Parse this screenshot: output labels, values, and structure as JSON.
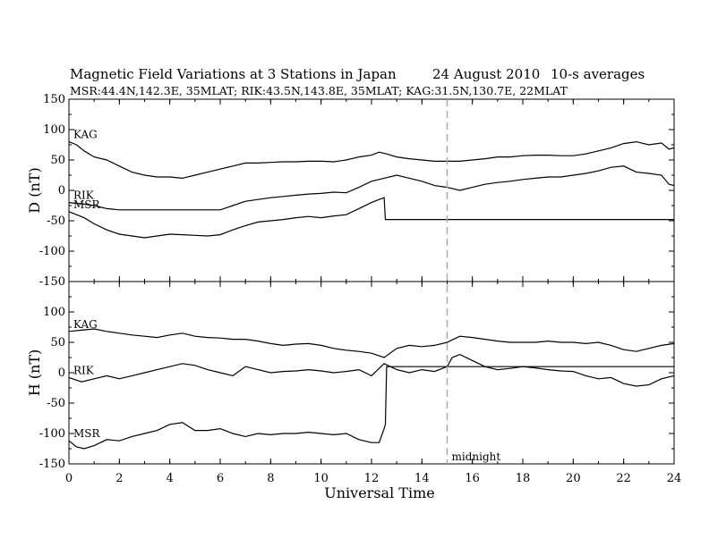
{
  "chart_data": {
    "type": "line",
    "title": "Magnetic Field Variations at 3 Stations in Japan",
    "date": "24  August  2010",
    "averaging": "10-s averages",
    "subtitle": "MSR:44.4N,142.3E, 35MLAT;  RIK:43.5N,143.8E, 35MLAT;  KAG:31.5N,130.7E, 22MLAT",
    "xlabel": "Universal Time",
    "xlim": [
      0,
      24
    ],
    "xticks": [
      "0",
      "2",
      "4",
      "6",
      "8",
      "10",
      "12",
      "14",
      "16",
      "18",
      "20",
      "22",
      "24"
    ],
    "marker_line": {
      "x": 15,
      "label": "midnight",
      "color": "#aaaaaa"
    },
    "panels": [
      {
        "ylabel": "D (nT)",
        "ylim": [
          -150,
          150
        ],
        "yticks": [
          "150",
          "100",
          "50",
          "0",
          "-50",
          "-100",
          "-150"
        ],
        "series": [
          {
            "name": "KAG",
            "x": [
              0,
              0.3,
              0.6,
              1,
              1.5,
              2,
              2.5,
              3,
              3.5,
              4,
              4.5,
              5,
              5.5,
              6,
              6.5,
              7,
              7.5,
              8,
              8.5,
              9,
              9.5,
              10,
              10.5,
              11,
              11.5,
              12,
              12.3,
              12.6,
              13,
              13.5,
              14,
              14.5,
              15,
              15.5,
              16,
              16.5,
              17,
              17.5,
              18,
              18.5,
              19,
              19.5,
              20,
              20.5,
              21,
              21.5,
              22,
              22.5,
              23,
              23.5,
              23.8,
              24
            ],
            "y": [
              80,
              75,
              65,
              55,
              50,
              40,
              30,
              25,
              22,
              22,
              20,
              25,
              30,
              35,
              40,
              45,
              45,
              46,
              47,
              47,
              48,
              48,
              47,
              50,
              55,
              58,
              63,
              60,
              55,
              52,
              50,
              48,
              48,
              48,
              50,
              52,
              55,
              55,
              57,
              58,
              58,
              57,
              57,
              60,
              65,
              70,
              77,
              80,
              75,
              78,
              68,
              70
            ]
          },
          {
            "name": "RIK",
            "x": [
              0,
              0.5,
              1,
              1.5,
              2,
              2.5,
              3,
              3.5,
              4,
              4.5,
              5,
              5.5,
              6,
              6.5,
              7,
              7.5,
              8,
              8.5,
              9,
              9.5,
              10,
              10.5,
              11,
              11.5,
              12,
              12.5,
              13,
              13.5,
              14,
              14.5,
              15,
              15.5,
              16,
              16.5,
              17,
              17.5,
              18,
              18.5,
              19,
              19.5,
              20,
              20.5,
              21,
              21.5,
              22,
              22.5,
              23,
              23.5,
              23.8,
              24
            ],
            "y": [
              -20,
              -22,
              -25,
              -30,
              -32,
              -32,
              -32,
              -32,
              -32,
              -32,
              -32,
              -32,
              -32,
              -25,
              -18,
              -15,
              -12,
              -10,
              -8,
              -6,
              -5,
              -3,
              -4,
              5,
              15,
              20,
              25,
              20,
              15,
              8,
              5,
              0,
              5,
              10,
              13,
              15,
              18,
              20,
              22,
              22,
              25,
              28,
              32,
              38,
              40,
              30,
              28,
              25,
              10,
              8
            ]
          },
          {
            "name": "MSR",
            "x": [
              0,
              0.3,
              0.6,
              1,
              1.5,
              2,
              2.5,
              3,
              3.5,
              4,
              4.5,
              5,
              5.5,
              6,
              6.5,
              7,
              7.5,
              8,
              8.5,
              9,
              9.5,
              10,
              10.5,
              11,
              11.5,
              12,
              12.3,
              12.5,
              12.55,
              13,
              14,
              15,
              16,
              18,
              20,
              22,
              24
            ],
            "y": [
              -35,
              -40,
              -45,
              -55,
              -65,
              -72,
              -75,
              -78,
              -75,
              -72,
              -73,
              -74,
              -75,
              -73,
              -65,
              -58,
              -52,
              -50,
              -48,
              -45,
              -43,
              -45,
              -42,
              -40,
              -30,
              -20,
              -15,
              -12,
              -48,
              -48,
              -48,
              -48,
              -48,
              -48,
              -48,
              -48,
              -48
            ]
          }
        ]
      },
      {
        "ylabel": "H (nT)",
        "ylim": [
          -150,
          150
        ],
        "yticks": [
          "",
          "100",
          "50",
          "0",
          "-50",
          "-100",
          "-150"
        ],
        "series": [
          {
            "name": "KAG",
            "x": [
              0,
              0.5,
              1,
              1.5,
              2,
              2.5,
              3,
              3.5,
              4,
              4.5,
              5,
              5.5,
              6,
              6.5,
              7,
              7.5,
              8,
              8.5,
              9,
              9.5,
              10,
              10.5,
              11,
              11.5,
              12,
              12.5,
              13,
              13.5,
              14,
              14.5,
              15,
              15.5,
              16,
              16.5,
              17,
              17.5,
              18,
              18.5,
              19,
              19.5,
              20,
              20.5,
              21,
              21.5,
              22,
              22.5,
              23,
              23.5,
              24
            ],
            "y": [
              68,
              70,
              72,
              68,
              65,
              62,
              60,
              58,
              62,
              65,
              60,
              58,
              57,
              55,
              55,
              52,
              48,
              45,
              47,
              48,
              45,
              40,
              37,
              35,
              32,
              25,
              40,
              45,
              43,
              45,
              50,
              60,
              58,
              55,
              52,
              50,
              50,
              50,
              52,
              50,
              50,
              48,
              50,
              45,
              38,
              35,
              40,
              45,
              48
            ]
          },
          {
            "name": "RIK",
            "x": [
              0,
              0.5,
              1,
              1.5,
              2,
              2.5,
              3,
              3.5,
              4,
              4.5,
              5,
              5.5,
              6,
              6.5,
              7,
              7.5,
              8,
              8.5,
              9,
              9.5,
              10,
              10.5,
              11,
              11.5,
              12,
              12.5,
              13,
              13.5,
              14,
              14.5,
              15,
              15.2,
              15.5,
              16,
              16.5,
              17,
              17.5,
              18,
              18.5,
              19,
              19.5,
              20,
              20.5,
              21,
              21.5,
              22,
              22.5,
              23,
              23.5,
              24
            ],
            "y": [
              -8,
              -15,
              -10,
              -5,
              -10,
              -5,
              0,
              5,
              10,
              15,
              12,
              5,
              0,
              -5,
              10,
              5,
              0,
              2,
              3,
              5,
              3,
              0,
              2,
              5,
              -5,
              15,
              5,
              0,
              5,
              2,
              10,
              25,
              30,
              20,
              10,
              5,
              7,
              10,
              8,
              5,
              3,
              2,
              -5,
              -10,
              -8,
              -18,
              -22,
              -20,
              -10,
              -5
            ]
          },
          {
            "name": "MSR",
            "x": [
              0,
              0.3,
              0.6,
              1,
              1.5,
              2,
              2.5,
              3,
              3.5,
              4,
              4.5,
              5,
              5.5,
              6,
              6.5,
              7,
              7.5,
              8,
              8.5,
              9,
              9.5,
              10,
              10.5,
              11,
              11.5,
              12,
              12.3,
              12.5,
              12.55,
              12.6,
              13,
              14,
              15,
              16,
              18,
              20,
              22,
              24
            ],
            "y": [
              -112,
              -122,
              -125,
              -120,
              -110,
              -112,
              -105,
              -100,
              -95,
              -85,
              -82,
              -95,
              -95,
              -92,
              -100,
              -105,
              -100,
              -102,
              -100,
              -100,
              -98,
              -100,
              -102,
              -100,
              -110,
              -115,
              -115,
              -92,
              -85,
              10,
              10,
              10,
              10,
              10,
              10,
              10,
              10,
              10
            ]
          }
        ]
      }
    ]
  }
}
